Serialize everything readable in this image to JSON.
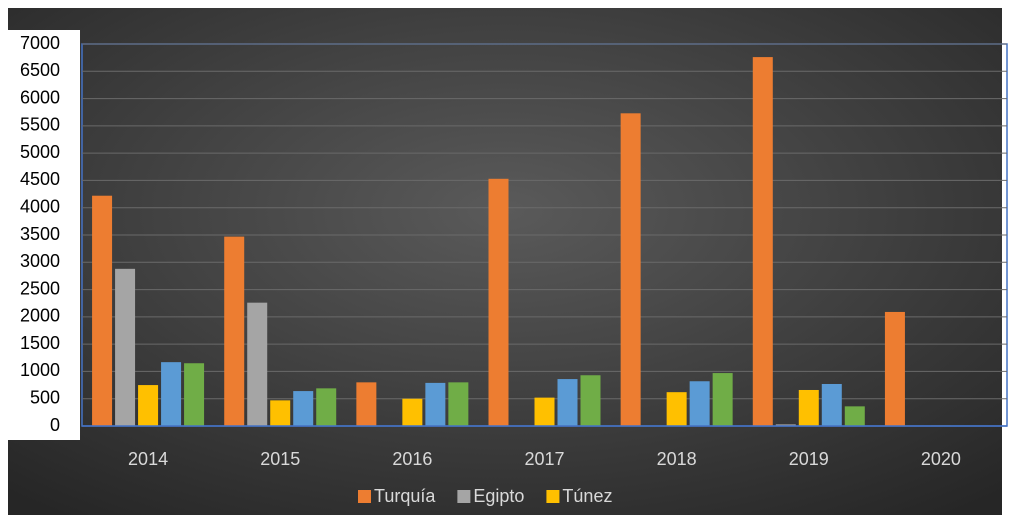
{
  "chart_data": {
    "type": "bar",
    "categories": [
      "2014",
      "2015",
      "2016",
      "2017",
      "2018",
      "2019",
      "2020"
    ],
    "series": [
      {
        "name": "Turquía",
        "color": "#ed7d31",
        "values": [
          4220,
          3470,
          800,
          4530,
          5730,
          6760,
          2090
        ]
      },
      {
        "name": "Egipto",
        "color": "#a5a5a5",
        "values": [
          2880,
          2260,
          0,
          0,
          0,
          30,
          0
        ]
      },
      {
        "name": "Túnez",
        "color": "#ffc000",
        "values": [
          750,
          470,
          500,
          520,
          620,
          660,
          10
        ]
      },
      {
        "color": "#5b9bd5",
        "values": [
          1170,
          640,
          790,
          860,
          820,
          770,
          0
        ]
      },
      {
        "color": "#70ad47",
        "values": [
          1150,
          690,
          800,
          930,
          970,
          360,
          0
        ]
      }
    ],
    "ylim": [
      0,
      7000
    ],
    "yticks": [
      0,
      500,
      1000,
      1500,
      2000,
      2500,
      3000,
      3500,
      4000,
      4500,
      5000,
      5500,
      6000,
      6500,
      7000
    ],
    "grid": true,
    "legend": "bottom"
  }
}
